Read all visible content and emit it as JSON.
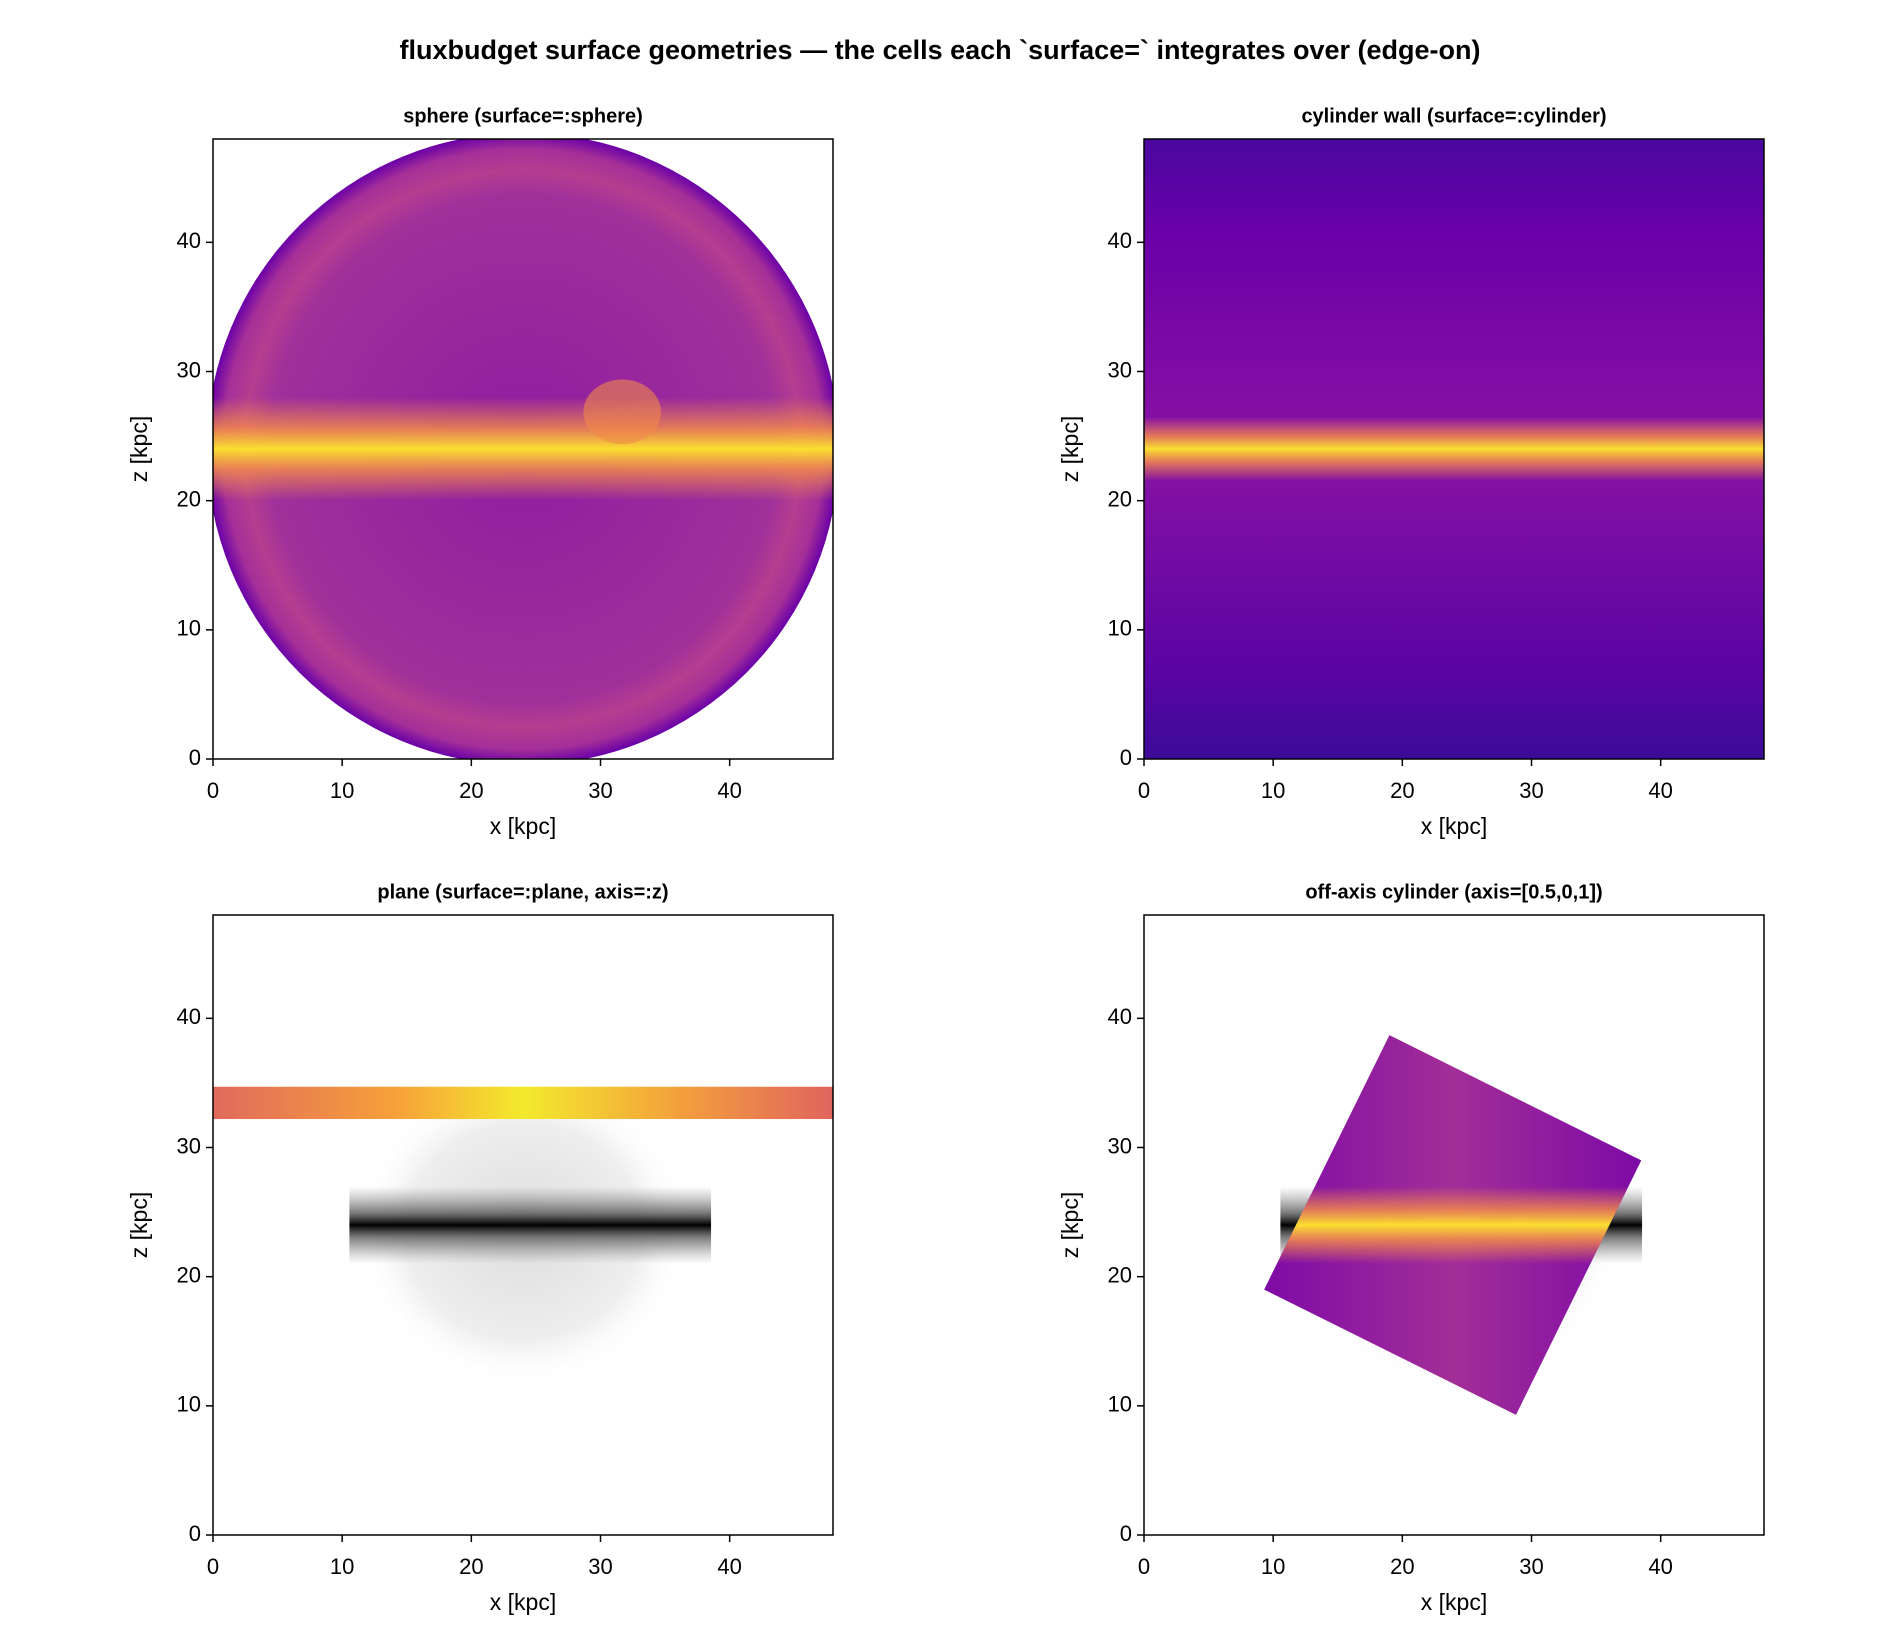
{
  "title": "fluxbudget surface geometries — the cells each `surface=` integrates over (edge-on)",
  "chart_data": [
    {
      "type": "heatmap",
      "title": "sphere  (surface=:sphere)",
      "xlabel": "x [kpc]",
      "ylabel": "z [kpc]",
      "xlim": [
        0,
        48
      ],
      "ylim": [
        0,
        48
      ],
      "xticks": [
        0,
        10,
        20,
        30,
        40
      ],
      "yticks": [
        0,
        10,
        20,
        30,
        40
      ]
    },
    {
      "type": "heatmap",
      "title": "cylinder wall  (surface=:cylinder)",
      "xlabel": "x [kpc]",
      "ylabel": "z [kpc]",
      "xlim": [
        0,
        48
      ],
      "ylim": [
        0,
        48
      ],
      "xticks": [
        0,
        10,
        20,
        30,
        40
      ],
      "yticks": [
        0,
        10,
        20,
        30,
        40
      ]
    },
    {
      "type": "heatmap",
      "title": "plane  (surface=:plane, axis=:z)",
      "xlabel": "x [kpc]",
      "ylabel": "z [kpc]",
      "xlim": [
        0,
        48
      ],
      "ylim": [
        0,
        48
      ],
      "xticks": [
        0,
        10,
        20,
        30,
        40
      ],
      "yticks": [
        0,
        10,
        20,
        30,
        40
      ]
    },
    {
      "type": "heatmap",
      "title": "off-axis cylinder  (axis=[0.5,0,1])",
      "xlabel": "x [kpc]",
      "ylabel": "z [kpc]",
      "xlim": [
        0,
        48
      ],
      "ylim": [
        0,
        48
      ],
      "xticks": [
        0,
        10,
        20,
        30,
        40
      ],
      "yticks": [
        0,
        10,
        20,
        30,
        40
      ]
    }
  ]
}
